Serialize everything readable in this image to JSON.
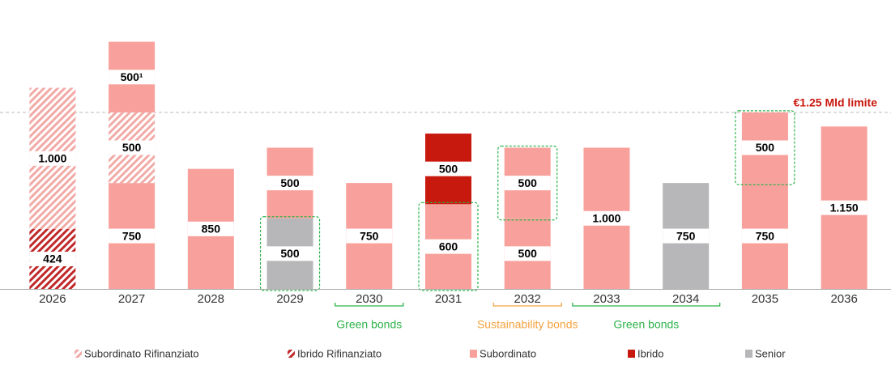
{
  "chart_data": {
    "type": "stacked-bar",
    "categories": [
      "2026",
      "2027",
      "2028",
      "2029",
      "2030",
      "2031",
      "2032",
      "2033",
      "2034",
      "2035",
      "2036"
    ],
    "series": [
      {
        "name": "Subordinato Rifinanziato",
        "color": "#f2aaa6",
        "pattern": "hatch"
      },
      {
        "name": "Ibrido Rifinanziato",
        "color": "#c0282a",
        "pattern": "hatch"
      },
      {
        "name": "Subordinato",
        "color": "#f8a09b"
      },
      {
        "name": "Ibrido",
        "color": "#c8190f"
      },
      {
        "name": "Senior",
        "color": "#b7b7b9"
      }
    ],
    "stacks": [
      {
        "segments": [
          {
            "series": "Ibrido Rifinanziato",
            "value": 424
          },
          {
            "series": "Subordinato Rifinanziato",
            "value": 1000,
            "value_label": "1.000"
          }
        ]
      },
      {
        "segments": [
          {
            "series": "Subordinato",
            "value": 750
          },
          {
            "series": "Subordinato Rifinanziato",
            "value": 500
          },
          {
            "series": "Subordinato",
            "value": 500,
            "value_label": "500¹"
          }
        ]
      },
      {
        "segments": [
          {
            "series": "Subordinato",
            "value": 850
          }
        ]
      },
      {
        "segments": [
          {
            "series": "Senior",
            "value": 500,
            "highlight": true
          },
          {
            "series": "Subordinato",
            "value": 500
          }
        ]
      },
      {
        "segments": [
          {
            "series": "Subordinato",
            "value": 750
          }
        ]
      },
      {
        "segments": [
          {
            "series": "Subordinato",
            "value": 600,
            "highlight": true
          },
          {
            "series": "Ibrido",
            "value": 500
          }
        ]
      },
      {
        "segments": [
          {
            "series": "Subordinato",
            "value": 500
          },
          {
            "series": "Subordinato",
            "value": 500,
            "highlight": true
          }
        ]
      },
      {
        "segments": [
          {
            "series": "Subordinato",
            "value": 1000,
            "value_label": "1.000"
          }
        ]
      },
      {
        "segments": [
          {
            "series": "Senior",
            "value": 750
          }
        ]
      },
      {
        "segments": [
          {
            "series": "Subordinato",
            "value": 750
          },
          {
            "series": "Subordinato",
            "value": 500,
            "highlight": true
          }
        ]
      },
      {
        "segments": [
          {
            "series": "Subordinato",
            "value": 1150,
            "value_label": "1.150"
          }
        ]
      }
    ],
    "ylim": [
      0,
      2000
    ],
    "limit": {
      "value": 1250,
      "label": "€1.25 Mld limite",
      "color": "#c8190f"
    },
    "highlight_color": "#2db34a",
    "brackets": [
      {
        "label": "Green bonds",
        "from": "2030",
        "to": "2030",
        "color": "#2db34a"
      },
      {
        "label": "Sustainability bonds",
        "from": "2032",
        "to": "2032",
        "color": "#f4a340"
      },
      {
        "label": "Green bonds",
        "from": "2033",
        "to": "2034",
        "color": "#2db34a"
      }
    ]
  }
}
